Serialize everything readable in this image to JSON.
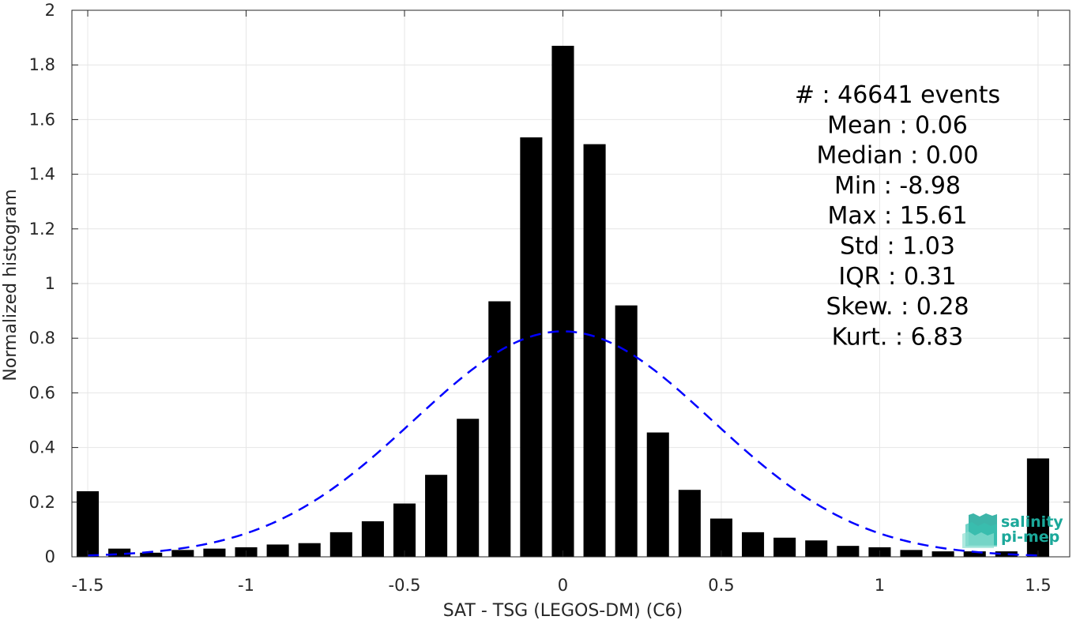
{
  "chart_data": {
    "type": "bar",
    "xlabel": "SAT - TSG (LEGOS-DM) (C6)",
    "ylabel": "Normalized histogram",
    "xlim": [
      -1.55,
      1.6
    ],
    "ylim": [
      0,
      2
    ],
    "xticks": [
      -1.5,
      -1,
      -0.5,
      0,
      0.5,
      1,
      1.5
    ],
    "xtick_labels": [
      "-1.5",
      "-1",
      "-0.5",
      "0",
      "0.5",
      "1",
      "1.5"
    ],
    "yticks": [
      0,
      0.2,
      0.4,
      0.6,
      0.8,
      1,
      1.2,
      1.4,
      1.6,
      1.8,
      2
    ],
    "ytick_labels": [
      "0",
      "0.2",
      "0.4",
      "0.6",
      "0.8",
      "1",
      "1.2",
      "1.4",
      "1.6",
      "1.8",
      "2"
    ],
    "grid": true,
    "bar_width": 0.07,
    "bars": [
      {
        "x": -1.5,
        "value": 0.24
      },
      {
        "x": -1.4,
        "value": 0.03
      },
      {
        "x": -1.3,
        "value": 0.015
      },
      {
        "x": -1.2,
        "value": 0.025
      },
      {
        "x": -1.1,
        "value": 0.03
      },
      {
        "x": -1.0,
        "value": 0.035
      },
      {
        "x": -0.9,
        "value": 0.045
      },
      {
        "x": -0.8,
        "value": 0.05
      },
      {
        "x": -0.7,
        "value": 0.09
      },
      {
        "x": -0.6,
        "value": 0.13
      },
      {
        "x": -0.5,
        "value": 0.195
      },
      {
        "x": -0.4,
        "value": 0.3
      },
      {
        "x": -0.3,
        "value": 0.505
      },
      {
        "x": -0.2,
        "value": 0.935
      },
      {
        "x": -0.1,
        "value": 1.535
      },
      {
        "x": 0.0,
        "value": 1.87
      },
      {
        "x": 0.1,
        "value": 1.51
      },
      {
        "x": 0.2,
        "value": 0.92
      },
      {
        "x": 0.3,
        "value": 0.455
      },
      {
        "x": 0.4,
        "value": 0.245
      },
      {
        "x": 0.5,
        "value": 0.14
      },
      {
        "x": 0.6,
        "value": 0.09
      },
      {
        "x": 0.7,
        "value": 0.07
      },
      {
        "x": 0.8,
        "value": 0.06
      },
      {
        "x": 0.9,
        "value": 0.04
      },
      {
        "x": 1.0,
        "value": 0.035
      },
      {
        "x": 1.1,
        "value": 0.025
      },
      {
        "x": 1.2,
        "value": 0.02
      },
      {
        "x": 1.3,
        "value": 0.02
      },
      {
        "x": 1.4,
        "value": 0.02
      },
      {
        "x": 1.5,
        "value": 0.36
      }
    ],
    "fit_curve": {
      "type": "gaussian",
      "mean": 0.0,
      "peak": 0.825,
      "sigma": 0.47,
      "color": "#0000ff",
      "style": "dashed"
    },
    "annotations": [
      "#  : 46641 events",
      "Mean : 0.06",
      "Median : 0.00",
      "Min : -8.98",
      "Max : 15.61",
      "Std : 1.03",
      "IQR : 0.31",
      "Skew. : 0.28",
      "Kurt. : 6.83"
    ],
    "bar_color": "#000000"
  },
  "logo": {
    "line1": "salinity",
    "line2": "pi-mep",
    "color": "#1ba89a"
  }
}
